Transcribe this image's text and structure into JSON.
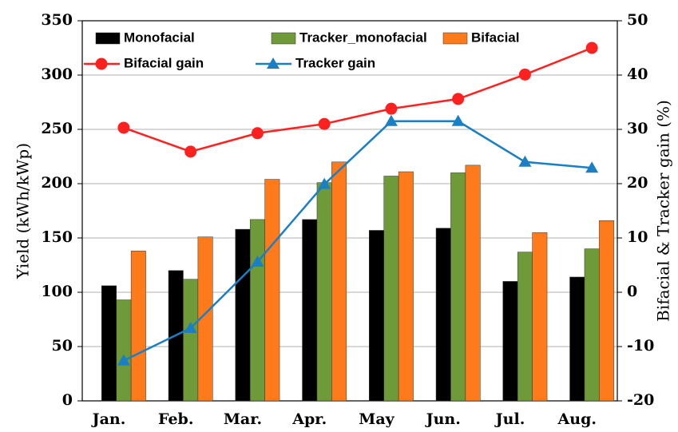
{
  "chart_data": {
    "type": "bar",
    "categories": [
      "Jan.",
      "Feb.",
      "Mar.",
      "Apr.",
      "May",
      "Jun.",
      "Jul.",
      "Aug."
    ],
    "ylabel": "Yield (kWh/kWp)",
    "y2label": "Bifacial & Tracker gain (%)",
    "ylim": [
      0,
      350
    ],
    "yticks": [
      0,
      50,
      100,
      150,
      200,
      250,
      300,
      350
    ],
    "y2lim": [
      -20,
      50
    ],
    "y2ticks": [
      -20,
      -10,
      0,
      10,
      20,
      30,
      40,
      50
    ],
    "grid": true,
    "series": [
      {
        "name": "Monofacial",
        "color": "#000000",
        "values": [
          106,
          120,
          158,
          167,
          157,
          159,
          110,
          114
        ]
      },
      {
        "name": "Tracker_monofacial",
        "color": "#6f9a3a",
        "values": [
          93,
          112,
          167,
          201,
          207,
          210,
          137,
          140
        ]
      },
      {
        "name": "Bifacial",
        "color": "#ff7a1a",
        "values": [
          138,
          151,
          204,
          220,
          211,
          217,
          155,
          166
        ]
      },
      {
        "name": "Bifacial gain",
        "color": "#ff2020",
        "type": "line",
        "axis": "y2",
        "marker": "circle",
        "values": [
          30.3,
          25.9,
          29.3,
          31.0,
          33.8,
          35.6,
          40.1,
          45.0
        ]
      },
      {
        "name": "Tracker gain",
        "color": "#1a7fc4",
        "type": "line",
        "axis": "y2",
        "marker": "triangle",
        "values": [
          -12.6,
          -6.6,
          5.6,
          19.9,
          31.5,
          31.5,
          24.0,
          22.9
        ]
      }
    ]
  }
}
